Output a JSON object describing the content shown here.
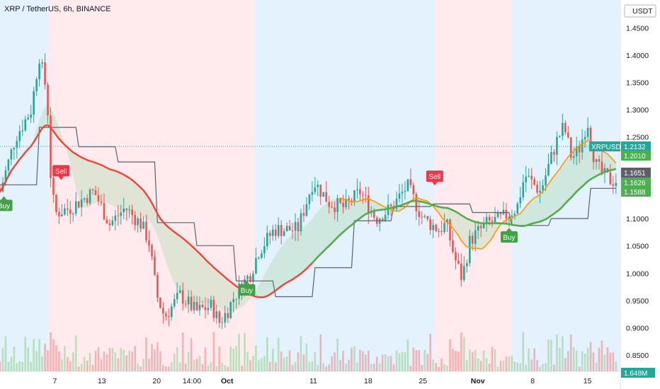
{
  "header": {
    "title": "XRP / TetherUS, 6h, BINANCE",
    "currency": "USDT"
  },
  "chart_data": {
    "type": "candlestick",
    "title": "XRP / TetherUS, 6h, BINANCE",
    "ylim": [
      0.82,
      1.47
    ],
    "y_ticks": [
      "1.4500",
      "1.4000",
      "1.3500",
      "1.3000",
      "1.2500",
      "1.1000",
      "1.0500",
      "1.0000",
      "0.9500",
      "0.9000",
      "0.8500"
    ],
    "x_ticks": [
      "7",
      "13",
      "20",
      "14:00",
      "Oct",
      "11",
      "18",
      "25",
      "Nov",
      "8",
      "15"
    ],
    "x_span": [
      0,
      56
    ],
    "x_tick_pos": [
      7,
      13,
      20,
      24.5,
      29,
      40,
      47,
      54,
      61,
      68,
      75
    ],
    "price_tags": [
      {
        "label": "XRPUSDT",
        "value": "1.2132",
        "color": "#26a69a"
      },
      {
        "label": "",
        "value": "1.2010",
        "color": "#4caf50"
      },
      {
        "label": "",
        "value": "1.1651",
        "color": "#5d606b"
      },
      {
        "label": "",
        "value": "1.1626",
        "color": "#4caf50"
      },
      {
        "label": "",
        "value": "1.1588",
        "color": "#4caf50"
      }
    ],
    "volume_tag": "1.648M",
    "signals": [
      {
        "label": "Sell",
        "x": 7.8,
        "y": 1.175,
        "color": "#f23645",
        "dir": "down"
      },
      {
        "label": "Sell",
        "x": 55.5,
        "y": 1.165,
        "color": "#f23645",
        "dir": "down"
      },
      {
        "label": "Buy",
        "x": 31.5,
        "y": 0.985,
        "color": "#43a047",
        "dir": "up"
      },
      {
        "label": "Buy",
        "x": 65,
        "y": 1.082,
        "color": "#43a047",
        "dir": "up"
      },
      {
        "label": "Buy",
        "x": 0.5,
        "y": 1.14,
        "color": "#43a047",
        "dir": "up"
      }
    ],
    "trend_zones": [
      {
        "from": 0,
        "to": 6.2,
        "trend": "up",
        "color": "#e3f2fd"
      },
      {
        "from": 6.2,
        "to": 32.5,
        "trend": "down",
        "color": "#ffebee"
      },
      {
        "from": 32.5,
        "to": 55.5,
        "trend": "up",
        "color": "#e3f2fd"
      },
      {
        "from": 55.5,
        "to": 65.3,
        "trend": "down",
        "color": "#ffebee"
      },
      {
        "from": 65.3,
        "to": 79.2,
        "trend": "up",
        "color": "#e3f2fd"
      }
    ],
    "colors": {
      "up": "#26a69a",
      "down": "#ef5350",
      "fast_ma": "#4caf50",
      "slow_ma": "#f44336",
      "mid_ma": "#ff9800",
      "channel": "#5d606b"
    }
  }
}
